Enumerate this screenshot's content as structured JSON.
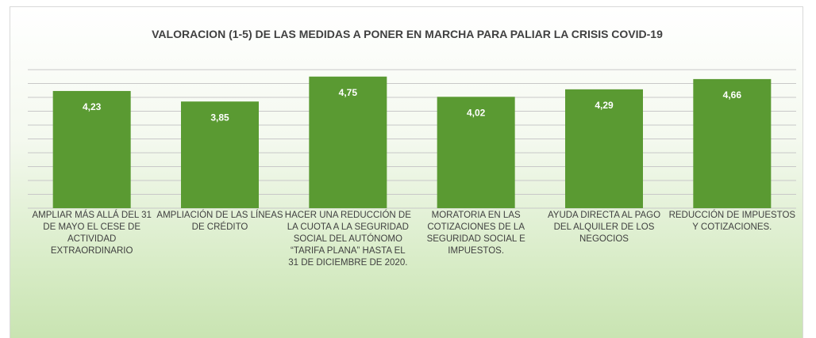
{
  "chart_data": {
    "type": "bar",
    "title": "VALORACION (1-5) DE LAS MEDIDAS A PONER EN MARCHA PARA PALIAR LA CRISIS COVID-19",
    "categories": [
      "AMPLIAR MÁS ALLÁ DEL 31 DE MAYO EL CESE DE ACTIVIDAD EXTRAORDINARIO",
      "AMPLIACIÓN DE LAS LÍNEAS DE CRÉDITO",
      "HACER UNA REDUCCIÓN DE LA CUOTA A LA SEGURIDAD SOCIAL DEL AUTÓNOMO “TARIFA PLANA” HASTA EL 31 DE DICIEMBRE DE 2020.",
      "MORATORIA EN LAS COTIZACIONES DE LA SEGURIDAD SOCIAL E IMPUESTOS.",
      "AYUDA DIRECTA AL PAGO DEL ALQUILER DE LOS NEGOCIOS",
      "REDUCCIÓN DE IMPUESTOS Y COTIZACIONES."
    ],
    "values": [
      4.23,
      3.85,
      4.75,
      4.02,
      4.29,
      4.66
    ],
    "value_labels": [
      "4,23",
      "3,85",
      "4,75",
      "4,02",
      "4,29",
      "4,66"
    ],
    "color": "#5a9a32",
    "ylim": [
      0,
      5
    ],
    "yticks": [
      0,
      0.5,
      1,
      1.5,
      2,
      2.5,
      3,
      3.5,
      4,
      4.5,
      5
    ],
    "grid": true
  }
}
